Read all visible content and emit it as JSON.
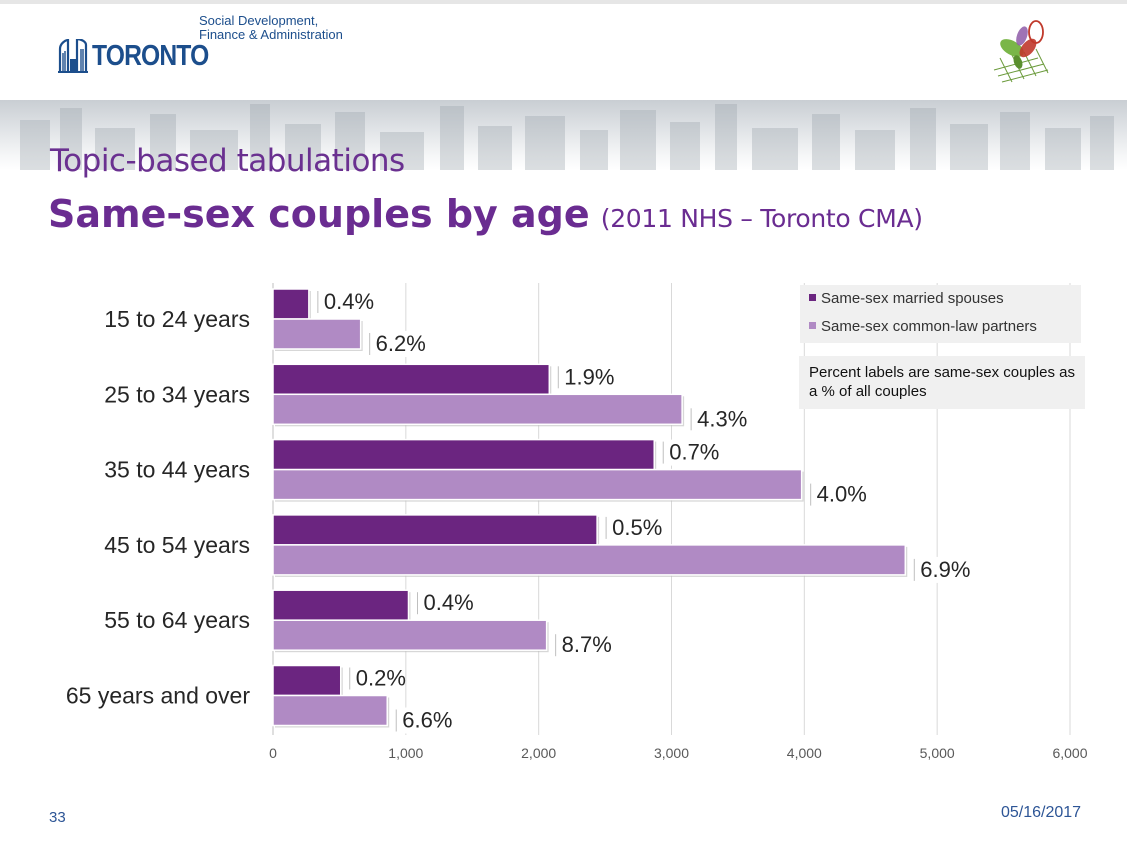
{
  "header": {
    "logo_word": "TORONTO",
    "logo_sub_line1": "Social Development,",
    "logo_sub_line2": "Finance & Administration"
  },
  "slide": {
    "title_small": "Topic-based tabulations",
    "title_main": "Same-sex couples by age",
    "title_sub": "(2011 NHS – Toronto CMA)"
  },
  "legend": {
    "married": "Same-sex married spouses",
    "common_law": "Same-sex common-law partners"
  },
  "note": "Percent labels are same-sex couples as a % of all couples",
  "footer": {
    "page_number": "33",
    "date": "05/16/2017"
  },
  "colors": {
    "married": "#6b2580",
    "common_law": "#b08ac4",
    "title": "#6a2c91",
    "footer": "#2d5596",
    "logo": "#1c4e8c"
  },
  "chart_data": {
    "type": "bar",
    "orientation": "horizontal",
    "categories": [
      "15 to 24 years",
      "25 to 34 years",
      "35 to 44 years",
      "45 to 54 years",
      "55 to 64 years",
      "65 years and over"
    ],
    "series": [
      {
        "name": "Same-sex married spouses",
        "values": [
          270,
          2080,
          2870,
          2440,
          1020,
          510
        ],
        "labels": [
          "0.4%",
          "1.9%",
          "0.7%",
          "0.5%",
          "0.4%",
          "0.2%"
        ]
      },
      {
        "name": "Same-sex common-law partners",
        "values": [
          660,
          3080,
          3980,
          4760,
          2060,
          860
        ],
        "labels": [
          "6.2%",
          "4.3%",
          "4.0%",
          "6.9%",
          "8.7%",
          "6.6%"
        ]
      }
    ],
    "xlim": [
      0,
      6000
    ],
    "xticks": [
      "0",
      "1,000",
      "2,000",
      "3,000",
      "4,000",
      "5,000",
      "6,000"
    ],
    "grid": true,
    "legend_position": "top-right"
  }
}
